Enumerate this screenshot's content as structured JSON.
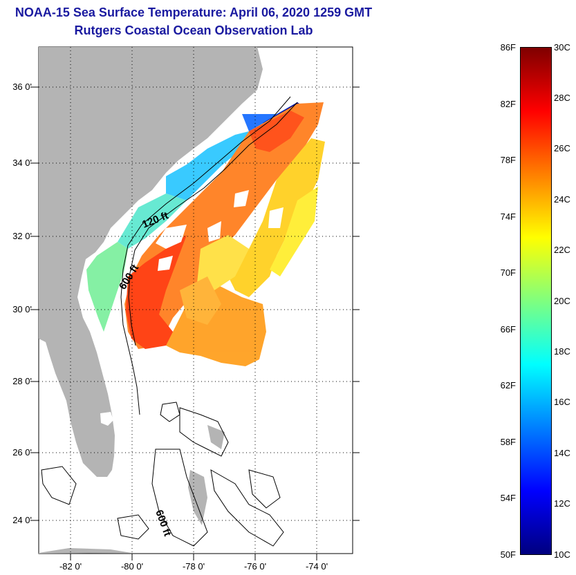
{
  "title": {
    "line1": "NOAA-15 Sea Surface Temperature:  April 06, 2020 1259 GMT",
    "line2": "Rutgers Coastal Ocean Observation Lab"
  },
  "map": {
    "latitude_labels": [
      "36 0'",
      "34 0'",
      "32 0'",
      "30 0'",
      "28 0'",
      "26 0'",
      "24 0'"
    ],
    "longitude_labels": [
      "-82 0'",
      "-80 0'",
      "-78 0'",
      "-76 0'",
      "-74 0'"
    ],
    "contour_labels": [
      "120 ft",
      "600 ft",
      "600 ft"
    ],
    "land_color": "#b4b4b4"
  },
  "colorbar": {
    "fahrenheit_labels": [
      "86F",
      "82F",
      "78F",
      "74F",
      "70F",
      "66F",
      "62F",
      "58F",
      "54F",
      "50F"
    ],
    "celsius_labels": [
      "30C",
      "28C",
      "26C",
      "24C",
      "22C",
      "20C",
      "18C",
      "16C",
      "14C",
      "12C",
      "10C"
    ],
    "min_c": 10,
    "max_c": 30,
    "colors": [
      "#00007f",
      "#0000ff",
      "#007fff",
      "#00ffff",
      "#7fff7f",
      "#ffff00",
      "#ff7f00",
      "#ff0000",
      "#7f0000"
    ]
  }
}
